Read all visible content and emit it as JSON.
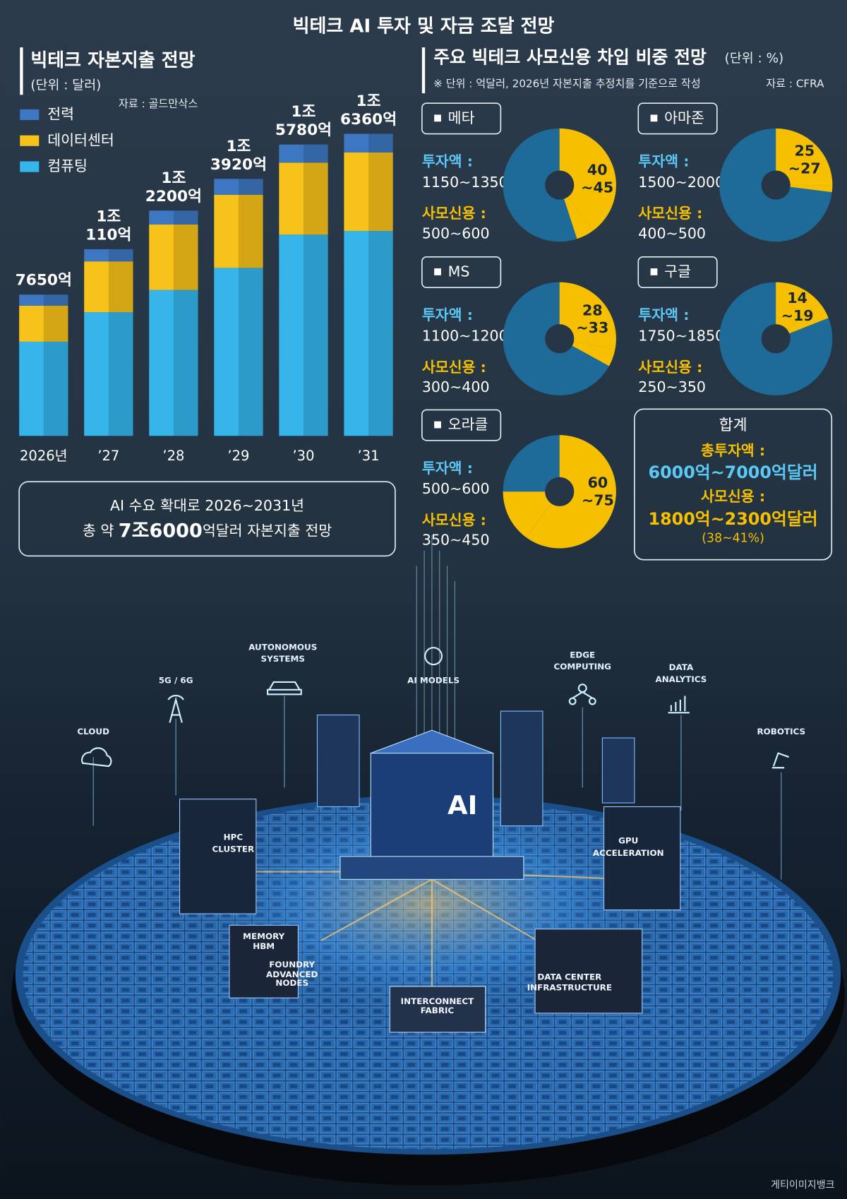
{
  "title": "빅테크 AI 투자 및 자금 조달 전망",
  "chart_data": [
    {
      "type": "bar",
      "stacked": true,
      "title": "빅테크 자본지출 전망",
      "unit": "(단위 : 달러)",
      "source": "자료 : 골드만삭스",
      "categories": [
        "2026년",
        "’27",
        "’28",
        "’29",
        "’30",
        "’31"
      ],
      "series": [
        {
          "name": "전력",
          "color": "#3d77c2",
          "values": [
            600,
            660,
            750,
            860,
            980,
            1010
          ]
        },
        {
          "name": "데이터센터",
          "color": "#f7c21a",
          "values": [
            1950,
            2750,
            3550,
            3960,
            3900,
            4250
          ]
        },
        {
          "name": "컴퓨팅",
          "color": "#35b5ea",
          "values": [
            5100,
            6700,
            7900,
            9100,
            10900,
            11100
          ]
        }
      ],
      "totals": [
        7650,
        10110,
        12200,
        13920,
        15780,
        16360
      ],
      "total_labels": [
        [
          "7650억"
        ],
        [
          "1조",
          "110억"
        ],
        [
          "1조",
          "2200억"
        ],
        [
          "1조",
          "3920억"
        ],
        [
          "1조",
          "5780억"
        ],
        [
          "1조",
          "6360억"
        ]
      ],
      "legend": "top-left"
    },
    {
      "type": "pie",
      "title": "메타",
      "invest_label": "투자액 :",
      "invest": "1150~1350",
      "credit_label": "사모신용 :",
      "credit": "500~600",
      "values": [
        40,
        45
      ],
      "value_labels": [
        "40",
        "~45"
      ],
      "color": "#f6c000",
      "base_color": "#1e6b99"
    },
    {
      "type": "pie",
      "title": "아마존",
      "invest_label": "투자액 :",
      "invest": "1500~2000",
      "credit_label": "사모신용 :",
      "credit": "400~500",
      "values": [
        25,
        27
      ],
      "value_labels": [
        "25",
        "~27"
      ],
      "color": "#f6c000",
      "base_color": "#1e6b99"
    },
    {
      "type": "pie",
      "title": "MS",
      "invest_label": "투자액 :",
      "invest": "1100~1200",
      "credit_label": "사모신용 :",
      "credit": "300~400",
      "values": [
        28,
        33
      ],
      "value_labels": [
        "28",
        "~33"
      ],
      "color": "#f6c000",
      "base_color": "#1e6b99"
    },
    {
      "type": "pie",
      "title": "구글",
      "invest_label": "투자액 :",
      "invest": "1750~1850",
      "credit_label": "사모신용 :",
      "credit": "250~350",
      "values": [
        14,
        19
      ],
      "value_labels": [
        "14",
        "~19"
      ],
      "color": "#f6c000",
      "base_color": "#1e6b99"
    },
    {
      "type": "pie",
      "title": "오라클",
      "invest_label": "투자액 :",
      "invest": "500~600",
      "credit_label": "사모신용 :",
      "credit": "350~450",
      "values": [
        60,
        75
      ],
      "value_labels": [
        "60",
        "~75"
      ],
      "color": "#f6c000",
      "base_color": "#1e6b99"
    }
  ],
  "credit_panel": {
    "title": "주요 빅테크 사모신용 차입 비중 전망",
    "unit": "(단위 : %)",
    "note": "※ 단위 : 억달러, 2026년 자본지출 추정치를 기준으로 작성",
    "source": "자료 : CFRA"
  },
  "total": {
    "title": "합계",
    "invest_label": "총투자액 :",
    "invest": "6000억~7000억달러",
    "credit_label": "사모신용 :",
    "credit": "1800억~2300억달러",
    "share": "(38~41%)"
  },
  "summary": {
    "line1": "AI 수요 확대로 2026~2031년",
    "line2_pre": "총 약 ",
    "line2_em": "7조6000",
    "line2_post": "억달러 자본지출 전망"
  },
  "illustration": {
    "cloud": "CLOUD",
    "g5": "5G / 6G",
    "autonomous": [
      "AUTONOMOUS",
      "SYSTEMS"
    ],
    "ai_models": "AI MODELS",
    "edge": [
      "EDGE",
      "COMPUTING"
    ],
    "analytics": [
      "DATA",
      "ANALYTICS"
    ],
    "robotics": "ROBOTICS",
    "ai": "AI",
    "hpc": [
      "HPC",
      "CLUSTER"
    ],
    "gpu": [
      "GPU",
      "ACCELERATION"
    ],
    "memory": [
      "MEMORY",
      "HBM"
    ],
    "foundry": [
      "FOUNDRY",
      "ADVANCED",
      "NODES"
    ],
    "interconnect": [
      "INTERCONNECT",
      "FABRIC"
    ],
    "datacenter": [
      "DATA CENTER",
      "INFRASTRUCTURE"
    ]
  },
  "credit": "게티이미지뱅크"
}
